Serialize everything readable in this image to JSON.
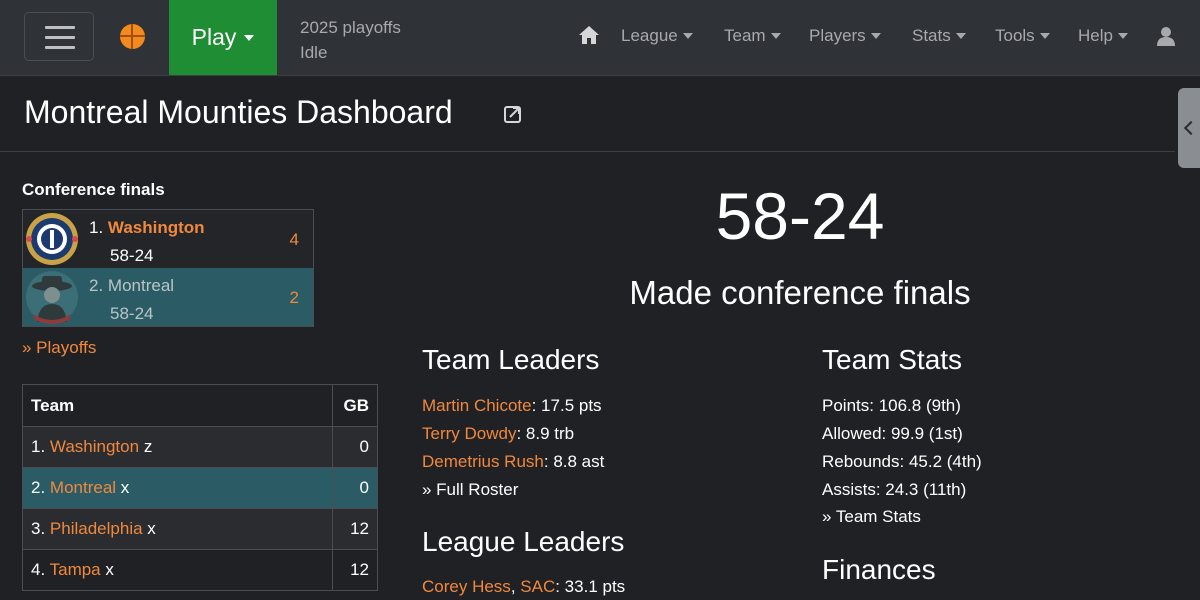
{
  "nav": {
    "play_label": "Play",
    "status_line1": "2025 playoffs",
    "status_line2": "Idle",
    "items": [
      "League",
      "Team",
      "Players",
      "Stats",
      "Tools",
      "Help"
    ]
  },
  "page": {
    "title": "Montreal Mounties Dashboard"
  },
  "series": {
    "label": "Conference finals",
    "teams": [
      {
        "seed": "1.",
        "name": "Washington",
        "record": "58-24",
        "wins": "4"
      },
      {
        "seed": "2.",
        "name": "Montreal",
        "record": "58-24",
        "wins": "2"
      }
    ],
    "playoffs_link": "» Playoffs"
  },
  "standings": {
    "headers": {
      "team": "Team",
      "gb": "GB"
    },
    "rows": [
      {
        "seed": "1.",
        "team": "Washington",
        "clinch": "z",
        "gb": "0"
      },
      {
        "seed": "2.",
        "team": "Montreal",
        "clinch": "x",
        "gb": "0"
      },
      {
        "seed": "3.",
        "team": "Philadelphia",
        "clinch": "x",
        "gb": "12"
      },
      {
        "seed": "4.",
        "team": "Tampa",
        "clinch": "x",
        "gb": "12"
      }
    ]
  },
  "summary": {
    "record": "58-24",
    "result": "Made conference finals"
  },
  "team_leaders": {
    "title": "Team Leaders",
    "items": [
      {
        "player": "Martin Chicote",
        "value": ": 17.5 pts"
      },
      {
        "player": "Terry Dowdy",
        "value": ": 8.9 trb"
      },
      {
        "player": "Demetrius Rush",
        "value": ": 8.8 ast"
      }
    ],
    "link": "» Full Roster"
  },
  "league_leaders": {
    "title": "League Leaders",
    "items": [
      {
        "player": "Corey Hess",
        "team": "SAC",
        "value": ": 33.1 pts"
      }
    ]
  },
  "team_stats": {
    "title": "Team Stats",
    "items": [
      "Points: 106.8 (9th)",
      "Allowed: 99.9 (1st)",
      "Rebounds: 45.2 (4th)",
      "Assists: 24.3 (11th)"
    ],
    "link": "» Team Stats"
  },
  "finances": {
    "title": "Finances"
  },
  "colors": {
    "accent": "#f0883e",
    "play": "#1e8d34",
    "highlight_row": "#2b5c66",
    "background": "#202124"
  },
  "icons": {
    "menu": "hamburger-icon",
    "logo": "basketball-icon",
    "home": "home-icon",
    "user": "user-icon",
    "external": "external-link-icon",
    "sidebar": "chevron-left-icon"
  }
}
